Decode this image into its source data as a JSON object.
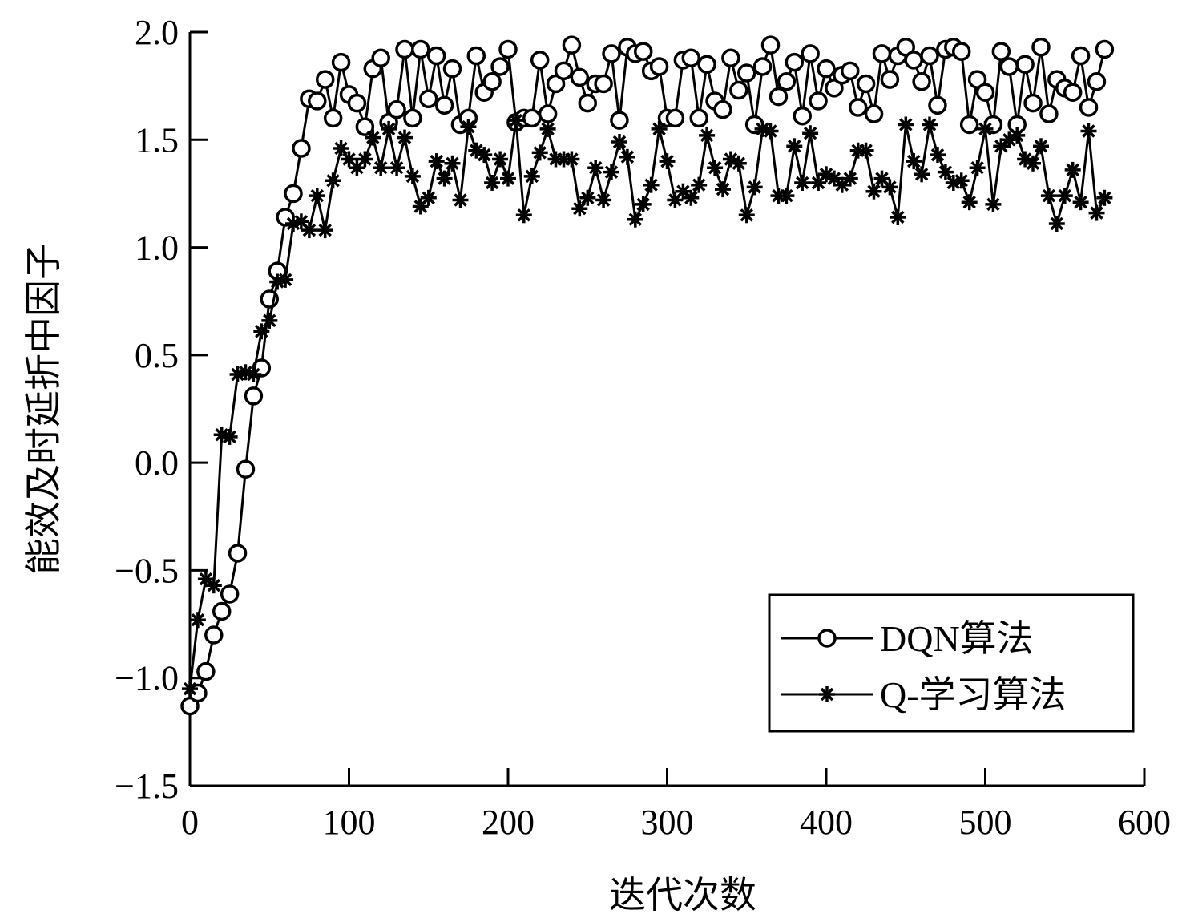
{
  "chart_data": {
    "type": "line",
    "xlabel": "迭代次数",
    "ylabel": "能效及时延折中因子",
    "xlim": [
      0,
      600
    ],
    "ylim": [
      -1.5,
      2.0
    ],
    "xticks": [
      0,
      100,
      200,
      300,
      400,
      500,
      600
    ],
    "xtick_labels": [
      "0",
      "100",
      "200",
      "300",
      "400",
      "500",
      "600"
    ],
    "yticks": [
      -1.5,
      -1.0,
      -0.5,
      0.0,
      0.5,
      1.0,
      1.5,
      2.0
    ],
    "ytick_labels": [
      "−1.5",
      "−1.0",
      "−0.5",
      "0.0",
      "0.5",
      "1.0",
      "1.5",
      "2.0"
    ],
    "grid": false,
    "legend_position": "bottom-right",
    "series": [
      {
        "name": "DQN算法",
        "marker": "circle",
        "x": [
          0,
          5,
          10,
          15,
          20,
          25,
          30,
          35,
          40,
          45,
          50,
          55,
          60,
          65,
          70,
          75,
          80,
          85,
          90,
          95,
          100,
          105,
          110,
          115,
          120,
          125,
          130,
          135,
          140,
          145,
          150,
          155,
          160,
          165,
          170,
          175,
          180,
          185,
          190,
          195,
          200,
          205,
          210,
          215,
          220,
          225,
          230,
          235,
          240,
          245,
          250,
          255,
          260,
          265,
          270,
          275,
          280,
          285,
          290,
          295,
          300,
          305,
          310,
          315,
          320,
          325,
          330,
          335,
          340,
          345,
          350,
          355,
          360,
          365,
          370,
          375,
          380,
          385,
          390,
          395,
          400,
          405,
          410,
          415,
          420,
          425,
          430,
          435,
          440,
          445,
          450,
          455,
          460,
          465,
          470,
          475,
          480,
          485,
          490,
          495,
          500,
          505,
          510,
          515,
          520,
          525,
          530,
          535,
          540,
          545,
          550,
          555,
          560,
          565,
          570,
          575
        ],
        "y": [
          -1.13,
          -1.07,
          -0.97,
          -0.8,
          -0.69,
          -0.61,
          -0.42,
          -0.03,
          0.31,
          0.44,
          0.76,
          0.89,
          1.14,
          1.25,
          1.46,
          1.69,
          1.68,
          1.78,
          1.6,
          1.86,
          1.71,
          1.67,
          1.56,
          1.83,
          1.88,
          1.58,
          1.64,
          1.92,
          1.6,
          1.92,
          1.69,
          1.89,
          1.66,
          1.83,
          1.57,
          1.6,
          1.89,
          1.72,
          1.77,
          1.84,
          1.92,
          1.58,
          1.6,
          1.6,
          1.87,
          1.62,
          1.76,
          1.82,
          1.94,
          1.79,
          1.67,
          1.76,
          1.76,
          1.9,
          1.59,
          1.93,
          1.9,
          1.91,
          1.82,
          1.84,
          1.6,
          1.6,
          1.87,
          1.88,
          1.6,
          1.85,
          1.68,
          1.64,
          1.88,
          1.73,
          1.81,
          1.57,
          1.84,
          1.94,
          1.7,
          1.77,
          1.86,
          1.61,
          1.9,
          1.68,
          1.83,
          1.74,
          1.8,
          1.82,
          1.65,
          1.76,
          1.62,
          1.9,
          1.78,
          1.89,
          1.93,
          1.87,
          1.77,
          1.89,
          1.66,
          1.92,
          1.93,
          1.91,
          1.57,
          1.78,
          1.72,
          1.57,
          1.91,
          1.84,
          1.57,
          1.85,
          1.67,
          1.93,
          1.62,
          1.78,
          1.74,
          1.72,
          1.89,
          1.65,
          1.77,
          1.92
        ]
      },
      {
        "name": "Q-学习算法",
        "marker": "star",
        "x": [
          0,
          5,
          10,
          15,
          20,
          25,
          30,
          35,
          40,
          45,
          50,
          55,
          60,
          65,
          70,
          75,
          80,
          85,
          90,
          95,
          100,
          105,
          110,
          115,
          120,
          125,
          130,
          135,
          140,
          145,
          150,
          155,
          160,
          165,
          170,
          175,
          180,
          185,
          190,
          195,
          200,
          205,
          210,
          215,
          220,
          225,
          230,
          235,
          240,
          245,
          250,
          255,
          260,
          265,
          270,
          275,
          280,
          285,
          290,
          295,
          300,
          305,
          310,
          315,
          320,
          325,
          330,
          335,
          340,
          345,
          350,
          355,
          360,
          365,
          370,
          375,
          380,
          385,
          390,
          395,
          400,
          405,
          410,
          415,
          420,
          425,
          430,
          435,
          440,
          445,
          450,
          455,
          460,
          465,
          470,
          475,
          480,
          485,
          490,
          495,
          500,
          505,
          510,
          515,
          520,
          525,
          530,
          535,
          540,
          545,
          550,
          555,
          560,
          565,
          570,
          575
        ],
        "y": [
          -1.05,
          -0.73,
          -0.54,
          -0.57,
          0.13,
          0.12,
          0.41,
          0.42,
          0.41,
          0.61,
          0.66,
          0.84,
          0.85,
          1.11,
          1.12,
          1.08,
          1.24,
          1.08,
          1.31,
          1.46,
          1.41,
          1.37,
          1.41,
          1.51,
          1.37,
          1.55,
          1.37,
          1.51,
          1.33,
          1.19,
          1.23,
          1.4,
          1.32,
          1.39,
          1.22,
          1.56,
          1.45,
          1.43,
          1.3,
          1.41,
          1.32,
          1.59,
          1.15,
          1.33,
          1.44,
          1.55,
          1.41,
          1.41,
          1.41,
          1.18,
          1.23,
          1.37,
          1.22,
          1.35,
          1.49,
          1.42,
          1.13,
          1.2,
          1.29,
          1.55,
          1.4,
          1.22,
          1.26,
          1.23,
          1.29,
          1.52,
          1.37,
          1.27,
          1.41,
          1.39,
          1.15,
          1.28,
          1.55,
          1.54,
          1.24,
          1.24,
          1.47,
          1.3,
          1.53,
          1.3,
          1.34,
          1.32,
          1.29,
          1.32,
          1.45,
          1.45,
          1.26,
          1.32,
          1.28,
          1.14,
          1.57,
          1.4,
          1.34,
          1.57,
          1.43,
          1.35,
          1.3,
          1.31,
          1.21,
          1.37,
          1.55,
          1.2,
          1.47,
          1.5,
          1.52,
          1.41,
          1.39,
          1.47,
          1.24,
          1.11,
          1.24,
          1.36,
          1.21,
          1.54,
          1.16,
          1.23
        ]
      }
    ]
  }
}
